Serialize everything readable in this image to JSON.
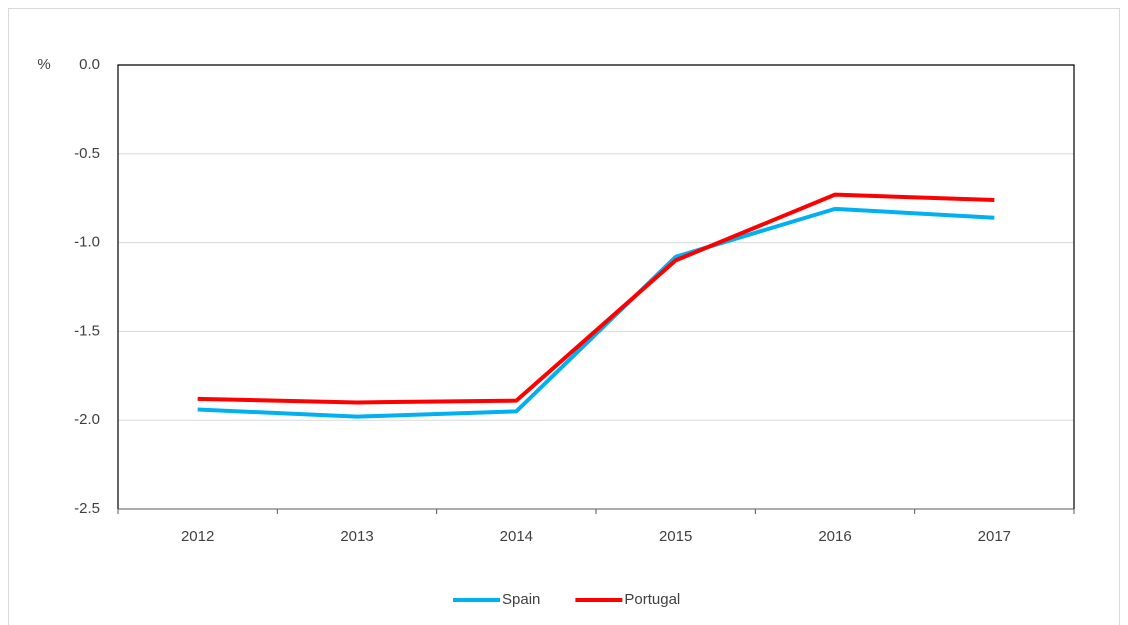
{
  "chart_data": {
    "type": "line",
    "y_label": "%",
    "categories": [
      "2012",
      "2013",
      "2014",
      "2015",
      "2016",
      "2017"
    ],
    "series": [
      {
        "name": "Spain",
        "color": "#00b0f0",
        "values": [
          -1.94,
          -1.98,
          -1.95,
          -1.08,
          -0.81,
          -0.86
        ]
      },
      {
        "name": "Portugal",
        "color": "#ff0000",
        "values": [
          -1.88,
          -1.9,
          -1.89,
          -1.1,
          -0.73,
          -0.76
        ]
      }
    ],
    "ylim": [
      -2.5,
      0
    ],
    "yticks": [
      {
        "value": 0,
        "label": "0.0"
      },
      -0.5,
      {
        "value": -1,
        "label": "-1.0"
      },
      -1.5,
      {
        "value": -2,
        "label": "-2.0"
      },
      -2.5
    ],
    "grid": true,
    "legend": "bottom"
  }
}
